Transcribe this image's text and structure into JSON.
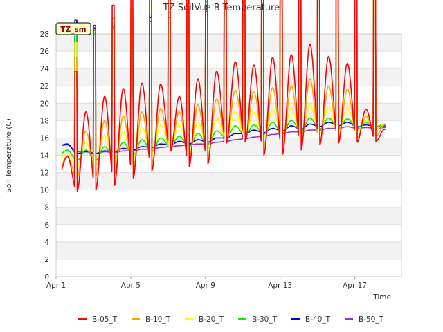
{
  "chart_data": {
    "type": "line",
    "title": "TZ SoilVue B Temperature",
    "xlabel": "Time",
    "ylabel": "Soil Temperature (C)",
    "station_tag": "TZ_sm",
    "ylim": [
      0,
      28
    ],
    "xlim": [
      0,
      18.5
    ],
    "yticks": [
      0,
      2,
      4,
      6,
      8,
      10,
      12,
      14,
      16,
      18,
      20,
      22,
      24,
      26,
      28
    ],
    "xticks": [
      {
        "label": "Apr 1",
        "day": 0
      },
      {
        "label": "Apr 5",
        "day": 4
      },
      {
        "label": "Apr 9",
        "day": 8
      },
      {
        "label": "Apr 13",
        "day": 12
      },
      {
        "label": "Apr 17",
        "day": 16
      }
    ],
    "grid": true,
    "legend_position": "bottom",
    "series_params": {
      "start_day": 0.3,
      "end_day": 17.65,
      "daily_peak_hour": 0.6
    },
    "series": [
      {
        "name": "B-05_T",
        "color": "#ff0000",
        "daily_min": [
          11.6,
          9.8,
          10.0,
          10.5,
          11.3,
          12.2,
          14.5,
          12.7,
          13.0,
          15.4,
          15.5,
          14.0,
          14.1,
          14.6,
          15.2,
          15.4,
          15.5,
          15.6
        ],
        "daily_max": [
          13.9,
          19.0,
          20.8,
          21.7,
          22.3,
          22.2,
          20.8,
          22.8,
          23.7,
          24.8,
          24.4,
          25.3,
          25.6,
          26.8,
          25.4,
          24.6,
          19.3,
          17.0
        ]
      },
      {
        "name": "B-10_T",
        "color": "#ffa500",
        "daily_min": [
          12.5,
          11.5,
          11.6,
          11.8,
          12.5,
          13.0,
          14.5,
          13.5,
          13.8,
          15.5,
          15.7,
          15.0,
          15.0,
          15.3,
          15.5,
          15.8,
          16.0,
          16.2
        ],
        "daily_max": [
          13.8,
          16.8,
          18.0,
          18.5,
          19.0,
          19.4,
          19.0,
          19.8,
          20.5,
          21.5,
          21.3,
          21.8,
          22.0,
          22.8,
          22.0,
          21.6,
          18.5,
          17.5
        ]
      },
      {
        "name": "B-20_T",
        "color": "#ffff00",
        "daily_min": [
          13.5,
          12.8,
          12.8,
          13.0,
          13.5,
          14.0,
          14.8,
          14.5,
          14.8,
          15.8,
          16.0,
          16.0,
          16.0,
          16.3,
          16.5,
          16.7,
          16.8,
          17.0
        ],
        "daily_max": [
          14.2,
          15.5,
          16.3,
          16.8,
          17.2,
          17.5,
          17.5,
          17.8,
          18.3,
          19.0,
          19.0,
          19.3,
          19.5,
          19.8,
          19.6,
          19.5,
          18.0,
          17.6
        ]
      },
      {
        "name": "B-30_T",
        "color": "#00ee00",
        "daily_min": [
          14.0,
          13.4,
          13.4,
          13.6,
          14.0,
          14.4,
          15.0,
          15.0,
          15.2,
          16.0,
          16.3,
          16.4,
          16.5,
          16.8,
          17.0,
          17.1,
          17.2,
          17.3
        ],
        "daily_max": [
          14.6,
          14.6,
          15.0,
          15.5,
          15.8,
          16.0,
          16.2,
          16.5,
          16.8,
          17.4,
          17.5,
          17.8,
          18.0,
          18.3,
          18.3,
          18.2,
          17.8,
          17.6
        ]
      },
      {
        "name": "B-40_T",
        "color": "#0000cc",
        "daily_min": [
          15.1,
          14.2,
          14.2,
          14.4,
          14.6,
          14.9,
          15.2,
          15.3,
          15.5,
          16.0,
          16.5,
          16.6,
          16.8,
          17.0,
          17.3,
          17.4,
          17.3,
          17.3
        ],
        "daily_max": [
          15.3,
          14.4,
          14.5,
          14.8,
          15.0,
          15.3,
          15.6,
          15.8,
          16.0,
          16.5,
          16.9,
          17.1,
          17.4,
          17.6,
          17.8,
          17.8,
          17.5,
          17.4
        ]
      },
      {
        "name": "B-50_T",
        "color": "#9933cc",
        "daily_min": [
          15.1,
          14.4,
          14.2,
          14.3,
          14.5,
          14.7,
          15.0,
          15.2,
          15.3,
          15.6,
          15.9,
          16.2,
          16.5,
          16.7,
          16.9,
          17.1,
          17.1,
          17.1
        ],
        "daily_max": [
          15.2,
          14.5,
          14.4,
          14.5,
          14.7,
          14.9,
          15.1,
          15.3,
          15.5,
          15.8,
          16.1,
          16.4,
          16.7,
          16.9,
          17.1,
          17.3,
          17.2,
          17.2
        ]
      }
    ]
  }
}
